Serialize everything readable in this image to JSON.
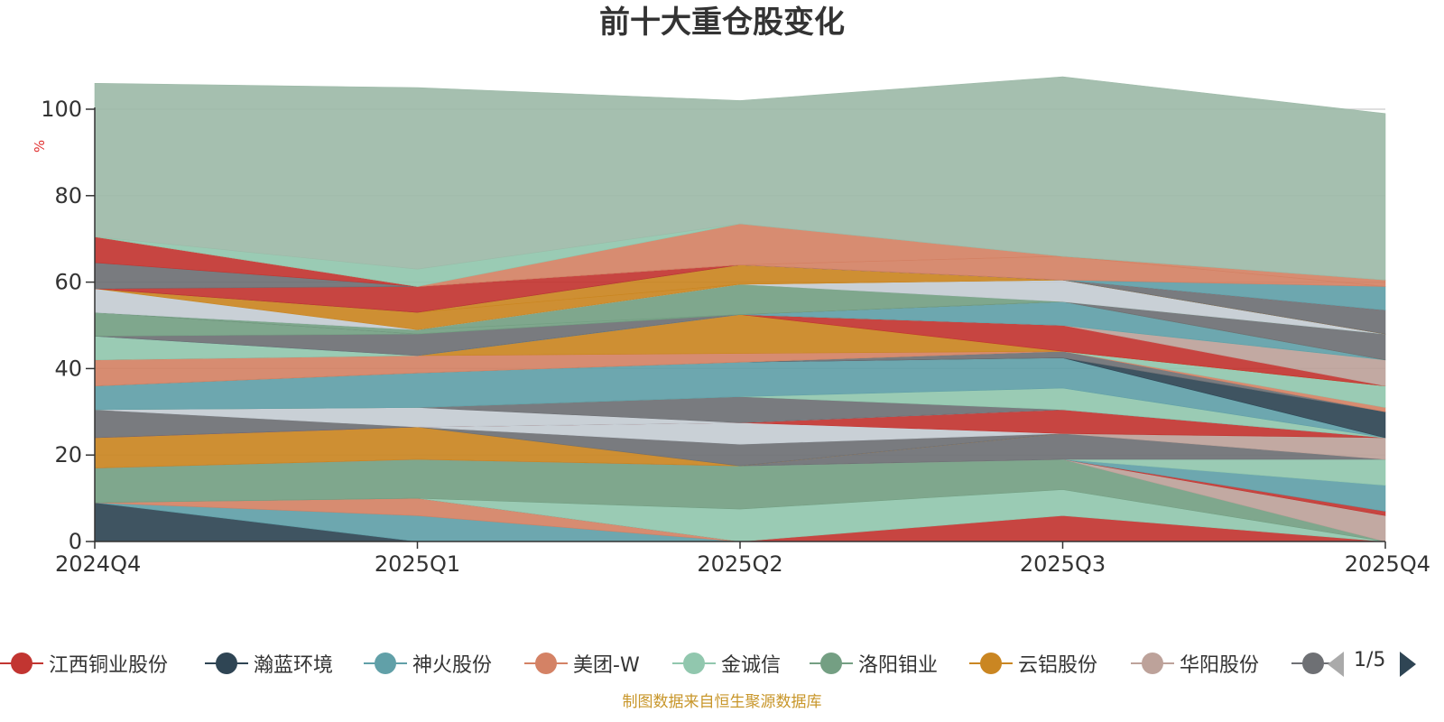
{
  "chart_data": {
    "type": "area",
    "title": "前十大重仓股变化",
    "ylabel": "%",
    "ylim": [
      0,
      100
    ],
    "yticks": [
      "0",
      "20",
      "40",
      "60",
      "80",
      "100"
    ],
    "categories": [
      "2024Q4",
      "2025Q1",
      "2025Q2",
      "2025Q3",
      "2025Q4"
    ],
    "stacked": true,
    "grid": true,
    "legend_position": "bottom",
    "series": [
      {
        "values": [
          9,
          0,
          0,
          0,
          0
        ],
        "color": "#2f4554"
      },
      {
        "values": [
          0,
          6,
          0,
          0,
          0
        ],
        "color": "#61a0a8"
      },
      {
        "values": [
          0,
          4,
          0,
          0,
          0
        ],
        "color": "#d48265"
      },
      {
        "values": [
          0,
          0,
          0,
          6,
          0
        ],
        "color": "#c23531"
      },
      {
        "values": [
          0,
          0,
          7.5,
          6,
          0
        ],
        "color": "#91c7ae"
      },
      {
        "values": [
          8,
          9,
          10,
          7,
          0
        ],
        "color": "#749f83"
      },
      {
        "values": [
          0,
          0,
          0,
          0,
          6
        ],
        "color": "#bda29a"
      },
      {
        "values": [
          0,
          0,
          0,
          0,
          1
        ],
        "color": "#c23531"
      },
      {
        "values": [
          0,
          0,
          0,
          0,
          6
        ],
        "color": "#61a0a8"
      },
      {
        "values": [
          0,
          0,
          0,
          0,
          6
        ],
        "color": "#91c7ae"
      },
      {
        "values": [
          0,
          0,
          0,
          6,
          0
        ],
        "color": "#6e7074"
      },
      {
        "values": [
          0,
          0,
          0,
          0,
          5
        ],
        "color": "#bda29a"
      },
      {
        "values": [
          7,
          7.5,
          0,
          0,
          0
        ],
        "color": "#ca8622"
      },
      {
        "values": [
          0,
          0,
          5,
          0,
          0
        ],
        "color": "#6e7074"
      },
      {
        "values": [
          0,
          0,
          5,
          0,
          0
        ],
        "color": "#c4ccd3"
      },
      {
        "values": [
          0,
          0,
          0,
          5.5,
          0
        ],
        "color": "#c23531"
      },
      {
        "values": [
          6.5,
          0,
          0,
          0,
          0
        ],
        "color": "#6e7074"
      },
      {
        "values": [
          0,
          4.5,
          0,
          0,
          0
        ],
        "color": "#c4ccd3"
      },
      {
        "values": [
          0,
          0,
          6,
          0,
          0
        ],
        "color": "#6e7074"
      },
      {
        "values": [
          0,
          0,
          0,
          5,
          0
        ],
        "color": "#91c7ae"
      },
      {
        "values": [
          5.5,
          8,
          8,
          7,
          0
        ],
        "color": "#61a0a8"
      },
      {
        "values": [
          0,
          0,
          0,
          0,
          6
        ],
        "color": "#2f4554"
      },
      {
        "values": [
          0,
          0,
          0,
          1.5,
          0
        ],
        "color": "#6e7074"
      },
      {
        "values": [
          0,
          0,
          0,
          0,
          1
        ],
        "color": "#d48265"
      },
      {
        "values": [
          0,
          0,
          0,
          0,
          5
        ],
        "color": "#91c7ae"
      },
      {
        "values": [
          6,
          4,
          2,
          0,
          0
        ],
        "color": "#d48265"
      },
      {
        "values": [
          0,
          0,
          9,
          0,
          0
        ],
        "color": "#ca8622"
      },
      {
        "values": [
          0,
          0,
          0,
          6,
          0
        ],
        "color": "#c23531"
      },
      {
        "values": [
          0,
          0,
          0,
          0,
          6
        ],
        "color": "#bda29a"
      },
      {
        "values": [
          5.5,
          0,
          0,
          0,
          0
        ],
        "color": "#91c7ae"
      },
      {
        "values": [
          0,
          0,
          0,
          5.5,
          0
        ],
        "color": "#61a0a8"
      },
      {
        "values": [
          0,
          5,
          0,
          0,
          0
        ],
        "color": "#6e7074"
      },
      {
        "values": [
          5.5,
          0,
          0,
          0,
          0
        ],
        "color": "#749f83"
      },
      {
        "values": [
          0,
          0,
          0,
          0,
          6
        ],
        "color": "#6e7074"
      },
      {
        "values": [
          0,
          1,
          0,
          0,
          0
        ],
        "color": "#749f83"
      },
      {
        "values": [
          0,
          0,
          7,
          0,
          0
        ],
        "color": "#749f83"
      },
      {
        "values": [
          0,
          0,
          0,
          5,
          0
        ],
        "color": "#c4ccd3"
      },
      {
        "values": [
          5.5,
          0,
          0,
          0,
          0
        ],
        "color": "#c4ccd3"
      },
      {
        "values": [
          0,
          4,
          0,
          0,
          0
        ],
        "color": "#ca8622"
      },
      {
        "values": [
          0,
          0,
          4.5,
          0,
          0
        ],
        "color": "#ca8622"
      },
      {
        "values": [
          0,
          0,
          0,
          0,
          5.5
        ],
        "color": "#6e7074"
      },
      {
        "values": [
          0,
          6,
          0,
          0,
          0
        ],
        "color": "#c23531"
      },
      {
        "values": [
          6,
          0,
          0,
          0,
          0
        ],
        "color": "#6e7074"
      },
      {
        "values": [
          6,
          0,
          0,
          0,
          0
        ],
        "color": "#c23531"
      },
      {
        "values": [
          0,
          0,
          0,
          0,
          5.5
        ],
        "color": "#61a0a8"
      },
      {
        "values": [
          0,
          0,
          0,
          5.5,
          0
        ],
        "color": "#d48265"
      },
      {
        "values": [
          0,
          0,
          0,
          0,
          1.5
        ],
        "color": "#d48265"
      },
      {
        "values": [
          0,
          0,
          9.5,
          0,
          0
        ],
        "color": "#d48265"
      },
      {
        "values": [
          0,
          4,
          0,
          0,
          0
        ],
        "color": "#91c7ae"
      },
      {
        "values": [
          35.5,
          42,
          28.5,
          41.5,
          38.5
        ],
        "color": "#9dbaa8"
      }
    ]
  },
  "legend": {
    "items": [
      {
        "label": "江西铜业股份",
        "color": "#c23531"
      },
      {
        "label": "瀚蓝环境",
        "color": "#2f4554"
      },
      {
        "label": "神火股份",
        "color": "#61a0a8"
      },
      {
        "label": "美团-W",
        "color": "#d48265"
      },
      {
        "label": "金诚信",
        "color": "#91c7ae"
      },
      {
        "label": "洛阳钼业",
        "color": "#749f83"
      },
      {
        "label": "云铝股份",
        "color": "#ca8622"
      },
      {
        "label": "华阳股份",
        "color": "#bda29a"
      },
      {
        "label": "",
        "color": "#6e7074"
      }
    ],
    "page": "1/5",
    "prev_icon": "arrow-left-icon",
    "next_icon": "arrow-right-icon"
  },
  "source_note": "制图数据来自恒生聚源数据库"
}
